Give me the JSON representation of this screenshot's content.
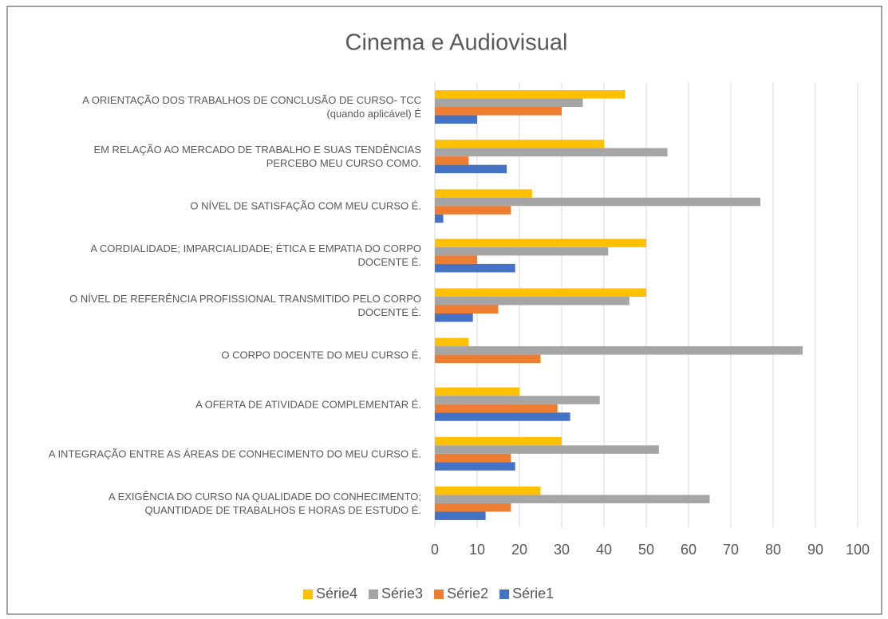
{
  "chart_data": {
    "type": "bar",
    "orientation": "horizontal",
    "title": "Cinema e Audiovisual",
    "categories": [
      "A ORIENTAÇÃO DOS TRABALHOS DE CONCLUSÃO DE CURSO- TCC (quando aplicável) É",
      "EM RELAÇÃO AO MERCADO DE TRABALHO E SUAS TENDÊNCIAS PERCEBO MEU CURSO COMO.",
      "O NÍVEL DE SATISFAÇÃO COM MEU CURSO É.",
      "A CORDIALIDADE; IMPARCIALIDADE; ÉTICA E EMPATIA DO CORPO DOCENTE É.",
      "O NÍVEL DE REFERÊNCIA PROFISSIONAL TRANSMITIDO PELO CORPO DOCENTE É.",
      "O CORPO DOCENTE DO MEU CURSO É.",
      "A OFERTA DE ATIVIDADE COMPLEMENTAR É.",
      "A INTEGRAÇÃO ENTRE AS ÁREAS DE CONHECIMENTO DO MEU CURSO É.",
      "A EXIGÊNCIA DO CURSO NA QUALIDADE DO CONHECIMENTO; QUANTIDADE DE TRABALHOS E HORAS DE ESTUDO É."
    ],
    "series": [
      {
        "name": "Série4",
        "color": "#ffc000",
        "values": [
          45,
          40,
          23,
          50,
          50,
          8,
          20,
          30,
          25
        ]
      },
      {
        "name": "Série3",
        "color": "#a5a5a5",
        "values": [
          35,
          55,
          77,
          41,
          46,
          87,
          39,
          53,
          65
        ]
      },
      {
        "name": "Série2",
        "color": "#ed7d31",
        "values": [
          30,
          8,
          18,
          10,
          15,
          25,
          29,
          18,
          18
        ]
      },
      {
        "name": "Série1",
        "color": "#4472c4",
        "values": [
          10,
          17,
          2,
          19,
          9,
          0,
          32,
          19,
          12
        ]
      }
    ],
    "xlim": [
      0,
      100
    ],
    "xticks": [
      0,
      10,
      20,
      30,
      40,
      50,
      60,
      70,
      80,
      90,
      100
    ],
    "grid": true,
    "legend": "bottom"
  }
}
